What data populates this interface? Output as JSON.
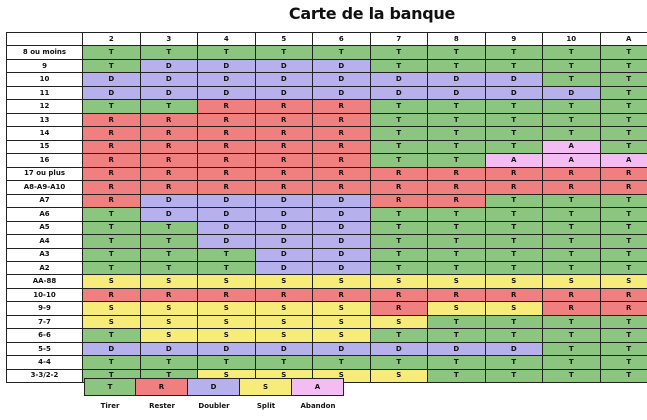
{
  "title": "Carte de la banque",
  "dealer_cards": [
    "2",
    "3",
    "4",
    "5",
    "6",
    "7",
    "8",
    "9",
    "10",
    "A"
  ],
  "rows": [
    {
      "label": "8 ou moins",
      "cells": [
        "T",
        "T",
        "T",
        "T",
        "T",
        "T",
        "T",
        "T",
        "T",
        "T"
      ]
    },
    {
      "label": "9",
      "cells": [
        "T",
        "D",
        "D",
        "D",
        "D",
        "T",
        "T",
        "T",
        "T",
        "T"
      ]
    },
    {
      "label": "10",
      "cells": [
        "D",
        "D",
        "D",
        "D",
        "D",
        "D",
        "D",
        "D",
        "T",
        "T"
      ]
    },
    {
      "label": "11",
      "cells": [
        "D",
        "D",
        "D",
        "D",
        "D",
        "D",
        "D",
        "D",
        "D",
        "T"
      ]
    },
    {
      "label": "12",
      "cells": [
        "T",
        "T",
        "R",
        "R",
        "R",
        "T",
        "T",
        "T",
        "T",
        "T"
      ]
    },
    {
      "label": "13",
      "cells": [
        "R",
        "R",
        "R",
        "R",
        "R",
        "T",
        "T",
        "T",
        "T",
        "T"
      ]
    },
    {
      "label": "14",
      "cells": [
        "R",
        "R",
        "R",
        "R",
        "R",
        "T",
        "T",
        "T",
        "T",
        "T"
      ]
    },
    {
      "label": "15",
      "cells": [
        "R",
        "R",
        "R",
        "R",
        "R",
        "T",
        "T",
        "T",
        "A",
        "T"
      ]
    },
    {
      "label": "16",
      "cells": [
        "R",
        "R",
        "R",
        "R",
        "R",
        "T",
        "T",
        "A",
        "A",
        "A"
      ]
    },
    {
      "label": "17 ou plus",
      "cells": [
        "R",
        "R",
        "R",
        "R",
        "R",
        "R",
        "R",
        "R",
        "R",
        "R"
      ]
    },
    {
      "label": "A8-A9-A10",
      "cells": [
        "R",
        "R",
        "R",
        "R",
        "R",
        "R",
        "R",
        "R",
        "R",
        "R"
      ]
    },
    {
      "label": "A7",
      "cells": [
        "R",
        "D",
        "D",
        "D",
        "D",
        "R",
        "R",
        "T",
        "T",
        "T"
      ]
    },
    {
      "label": "A6",
      "cells": [
        "T",
        "D",
        "D",
        "D",
        "D",
        "T",
        "T",
        "T",
        "T",
        "T"
      ]
    },
    {
      "label": "A5",
      "cells": [
        "T",
        "T",
        "D",
        "D",
        "D",
        "T",
        "T",
        "T",
        "T",
        "T"
      ]
    },
    {
      "label": "A4",
      "cells": [
        "T",
        "T",
        "D",
        "D",
        "D",
        "T",
        "T",
        "T",
        "T",
        "T"
      ]
    },
    {
      "label": "A3",
      "cells": [
        "T",
        "T",
        "T",
        "D",
        "D",
        "T",
        "T",
        "T",
        "T",
        "T"
      ]
    },
    {
      "label": "A2",
      "cells": [
        "T",
        "T",
        "T",
        "D",
        "D",
        "T",
        "T",
        "T",
        "T",
        "T"
      ]
    },
    {
      "label": "AA-88",
      "cells": [
        "S",
        "S",
        "S",
        "S",
        "S",
        "S",
        "S",
        "S",
        "S",
        "S"
      ]
    },
    {
      "label": "10-10",
      "cells": [
        "R",
        "R",
        "R",
        "R",
        "R",
        "R",
        "R",
        "R",
        "R",
        "R"
      ]
    },
    {
      "label": "9-9",
      "cells": [
        "S",
        "S",
        "S",
        "S",
        "S",
        "R",
        "S",
        "S",
        "R",
        "R"
      ]
    },
    {
      "label": "7-7",
      "cells": [
        "S",
        "S",
        "S",
        "S",
        "S",
        "S",
        "T",
        "T",
        "T",
        "T"
      ]
    },
    {
      "label": "6-6",
      "cells": [
        "T",
        "S",
        "S",
        "S",
        "S",
        "T",
        "T",
        "T",
        "T",
        "T"
      ]
    },
    {
      "label": "5-5",
      "cells": [
        "D",
        "D",
        "D",
        "D",
        "D",
        "D",
        "D",
        "D",
        "T",
        "T"
      ]
    },
    {
      "label": "4-4",
      "cells": [
        "T",
        "T",
        "T",
        "T",
        "T",
        "T",
        "T",
        "T",
        "T",
        "T"
      ]
    },
    {
      "label": "3-3/2-2",
      "cells": [
        "T",
        "T",
        "S",
        "S",
        "S",
        "S",
        "T",
        "T",
        "T",
        "T"
      ]
    }
  ],
  "legend": [
    {
      "code": "T",
      "label": "Tirer",
      "color": "#8bc57f"
    },
    {
      "code": "R",
      "label": "Rester",
      "color": "#f08080"
    },
    {
      "code": "D",
      "label": "Doubler",
      "color": "#b6b1ec"
    },
    {
      "code": "S",
      "label": "Split",
      "color": "#f7ec7a"
    },
    {
      "code": "A",
      "label": "Abandon",
      "color": "#f3bcf3"
    }
  ]
}
